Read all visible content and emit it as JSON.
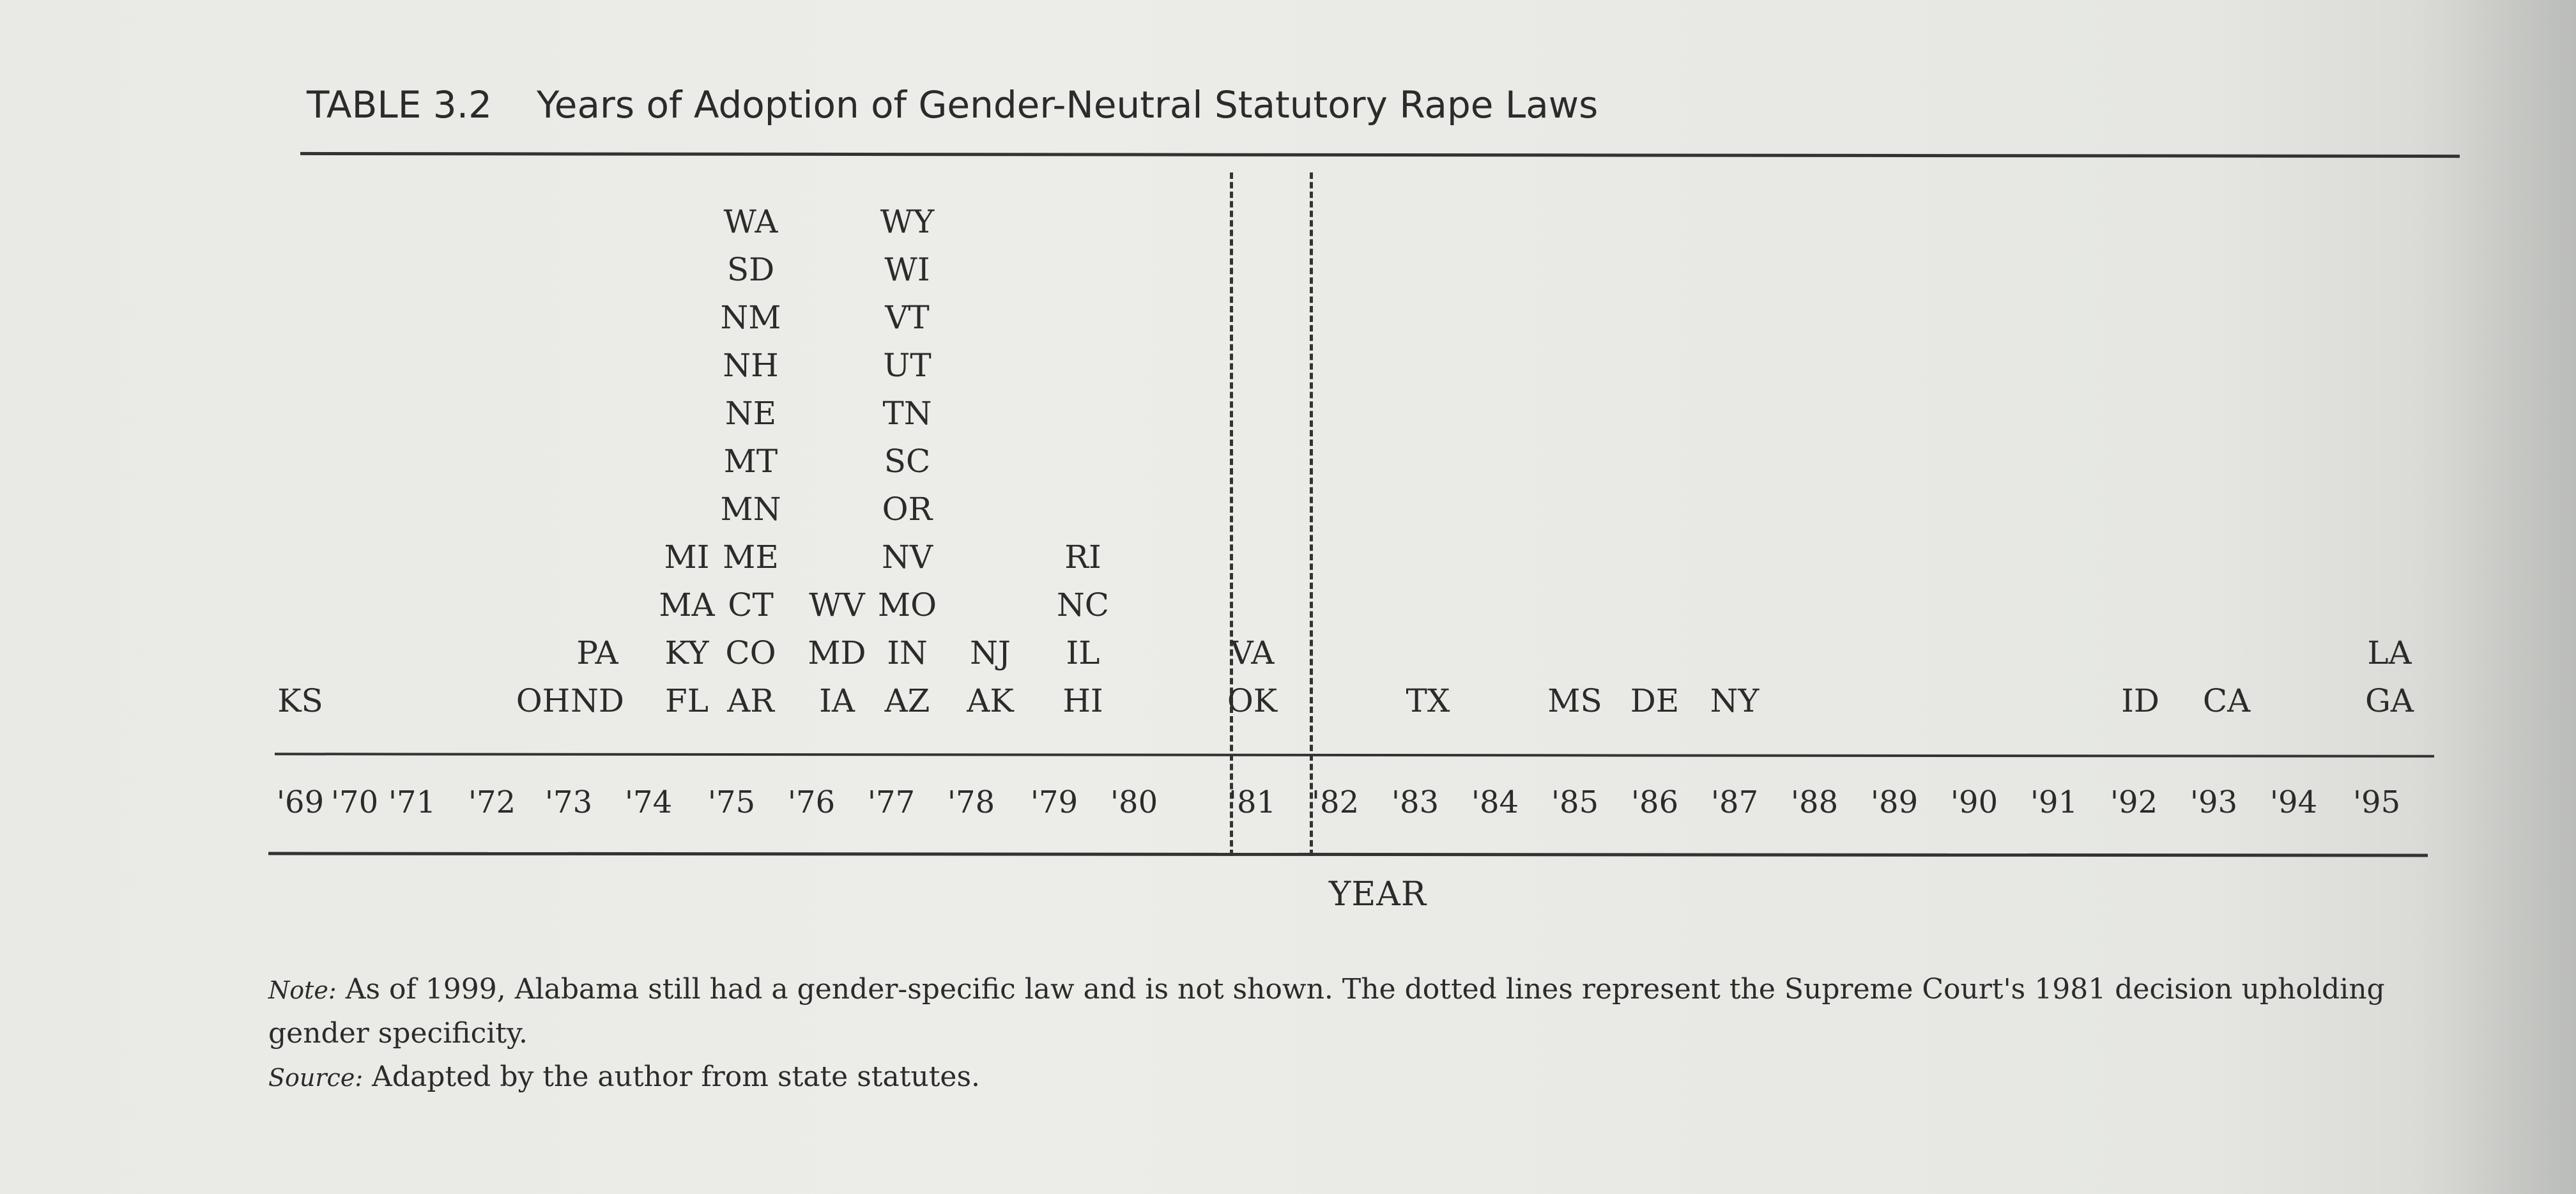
{
  "table": {
    "label": "TABLE 3.2",
    "title": "Years of Adoption of Gender-Neutral Statutory Rape Laws",
    "axis_label": "YEAR"
  },
  "years": [
    "'69",
    "'70",
    "'71",
    "'72",
    "'73",
    "'74",
    "'75",
    "'76",
    "'77",
    "'78",
    "'79",
    "'80",
    "'81",
    "'82",
    "'83",
    "'84",
    "'85",
    "'86",
    "'87",
    "'88",
    "'89",
    "'90",
    "'91",
    "'92",
    "'93",
    "'94",
    "'95"
  ],
  "columns": [
    {
      "year": "'69",
      "states": [
        "KS"
      ]
    },
    {
      "year": "'72",
      "states": [
        "OH"
      ]
    },
    {
      "year": "'73",
      "states": [
        "PA",
        "ND"
      ]
    },
    {
      "year": "'74",
      "states": [
        "MI",
        "MA",
        "KY",
        "FL"
      ]
    },
    {
      "year": "'75",
      "states": [
        "WA",
        "SD",
        "NM",
        "NH",
        "NE",
        "MT",
        "MN",
        "ME",
        "CT",
        "CO",
        "AR"
      ]
    },
    {
      "year": "'76",
      "states": [
        "WV",
        "MD",
        "IA"
      ]
    },
    {
      "year": "'77",
      "states": [
        "WY",
        "WI",
        "VT",
        "UT",
        "TN",
        "SC",
        "OR",
        "NV",
        "MO",
        "IN",
        "AZ"
      ]
    },
    {
      "year": "'78",
      "states": [
        "NJ",
        "AK"
      ]
    },
    {
      "year": "'79",
      "states": [
        "RI",
        "NC",
        "IL",
        "HI"
      ]
    },
    {
      "year": "'81",
      "states": [
        "VA",
        "OK"
      ]
    },
    {
      "year": "'83",
      "states": [
        "TX"
      ]
    },
    {
      "year": "'85",
      "states": [
        "MS"
      ]
    },
    {
      "year": "'86",
      "states": [
        "DE"
      ]
    },
    {
      "year": "'87",
      "states": [
        "NY"
      ]
    },
    {
      "year": "'92",
      "states": [
        "ID"
      ]
    },
    {
      "year": "'93",
      "states": [
        "CA"
      ]
    },
    {
      "year": "'95",
      "states": [
        "LA",
        "GA"
      ]
    }
  ],
  "note": {
    "label": "Note:",
    "text": "As of 1999, Alabama still had a gender-specific law and is not shown. The dotted lines represent the Supreme Court's 1981 decision upholding gender specificity."
  },
  "source": {
    "label": "Source:",
    "text": "Adapted by the author from state statutes."
  }
}
